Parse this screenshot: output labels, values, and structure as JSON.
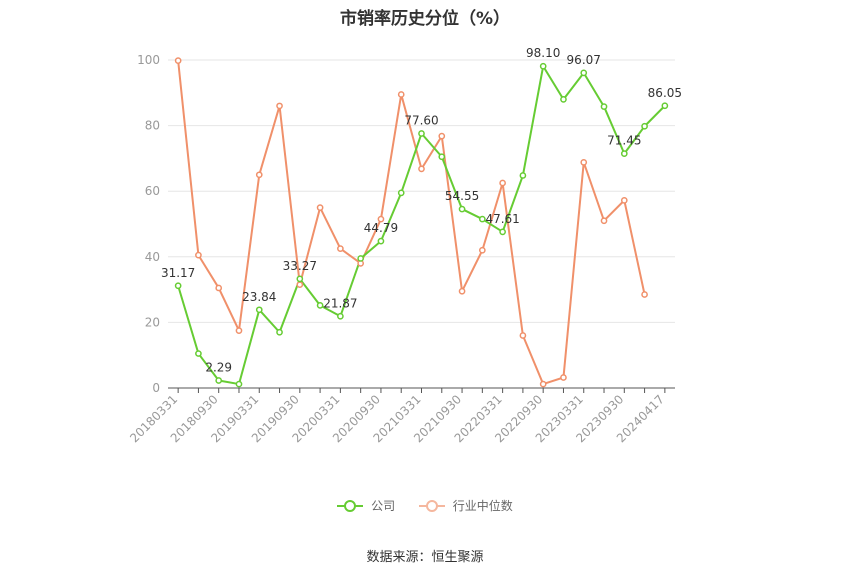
{
  "title": "市销率历史分位（%）",
  "source": "数据来源：恒生聚源",
  "colors": {
    "company": "#66cc33",
    "industry": "#f0906a",
    "grid": "#e6e6e6",
    "axis": "#555555"
  },
  "chart_data": {
    "type": "line",
    "title": "市销率历史分位（%）",
    "ylim": [
      0,
      100
    ],
    "yticks": [
      0,
      20,
      40,
      60,
      80,
      100
    ],
    "grid": true,
    "legend_position": "bottom",
    "x_tick_labels": [
      "20180331",
      "20180930",
      "20190331",
      "20190930",
      "20200331",
      "20200930",
      "20210331",
      "20210930",
      "20220331",
      "20220930",
      "20230331",
      "20230930",
      "20240417"
    ],
    "x": [
      "20180331",
      "20180630",
      "20180930",
      "20181231",
      "20190331",
      "20190630",
      "20190930",
      "20191231",
      "20200331",
      "20200630",
      "20200930",
      "20201231",
      "20210331",
      "20210630",
      "20210930",
      "20211231",
      "20220331",
      "20220630",
      "20220930",
      "20221231",
      "20230331",
      "20230630",
      "20230930",
      "20231231",
      "20240417"
    ],
    "series": [
      {
        "name": "公司",
        "color": "#66cc33",
        "values": [
          31.17,
          10.5,
          2.29,
          1.2,
          23.84,
          17.0,
          33.27,
          25.2,
          21.87,
          39.5,
          44.79,
          59.5,
          77.6,
          70.5,
          54.55,
          51.5,
          47.61,
          64.8,
          98.1,
          88.0,
          96.07,
          85.8,
          71.45,
          79.8,
          86.05
        ]
      },
      {
        "name": "行业中位数",
        "color": "#f0906a",
        "values": [
          99.8,
          40.5,
          30.5,
          17.5,
          65.0,
          86.0,
          31.5,
          55.0,
          42.5,
          38.0,
          51.5,
          89.5,
          66.8,
          76.8,
          29.5,
          42.0,
          62.5,
          16.0,
          1.2,
          3.2,
          68.8,
          51.0,
          57.2,
          28.5,
          null
        ]
      }
    ],
    "labels": [
      {
        "index": 0,
        "text": "31.17"
      },
      {
        "index": 2,
        "text": "2.29"
      },
      {
        "index": 4,
        "text": "23.84"
      },
      {
        "index": 6,
        "text": "33.27"
      },
      {
        "index": 8,
        "text": "21.87"
      },
      {
        "index": 10,
        "text": "44.79"
      },
      {
        "index": 12,
        "text": "77.60"
      },
      {
        "index": 14,
        "text": "54.55"
      },
      {
        "index": 16,
        "text": "47.61"
      },
      {
        "index": 18,
        "text": "98.10"
      },
      {
        "index": 20,
        "text": "96.07"
      },
      {
        "index": 22,
        "text": "71.45"
      },
      {
        "index": 24,
        "text": "86.05"
      }
    ]
  }
}
